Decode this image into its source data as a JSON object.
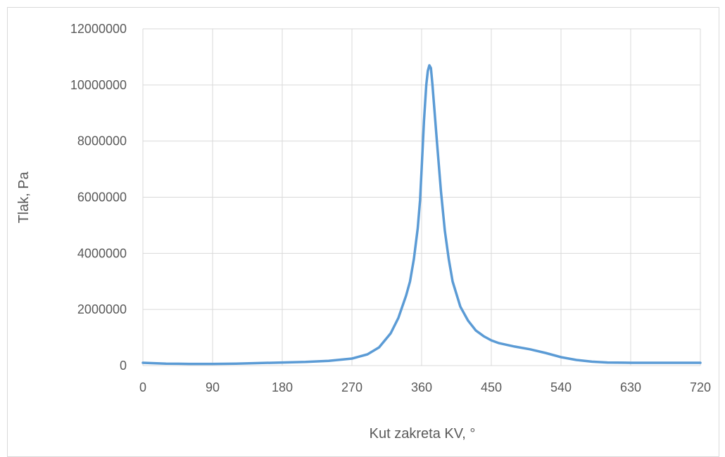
{
  "chart_data": {
    "type": "line",
    "title": "",
    "xlabel": "Kut zakreta KV, °",
    "ylabel": "Tlak, Pa",
    "xlim": [
      0,
      720
    ],
    "ylim": [
      0,
      12000000
    ],
    "x_ticks": [
      0,
      90,
      180,
      270,
      360,
      450,
      540,
      630,
      720
    ],
    "y_ticks": [
      0,
      2000000,
      4000000,
      6000000,
      8000000,
      10000000,
      12000000
    ],
    "x_tick_labels": [
      "0",
      "90",
      "180",
      "270",
      "360",
      "450",
      "540",
      "630",
      "720"
    ],
    "y_tick_labels": [
      "0",
      "2000000",
      "4000000",
      "6000000",
      "8000000",
      "10000000",
      "12000000"
    ],
    "grid": true,
    "legend": "none",
    "series_color": "#5b9bd5",
    "grid_color": "#d9d9d9",
    "series": [
      {
        "x": [
          0,
          30,
          60,
          90,
          120,
          150,
          180,
          210,
          240,
          270,
          290,
          305,
          320,
          330,
          340,
          345,
          350,
          355,
          358,
          360,
          363,
          366,
          368,
          370,
          372,
          374,
          376,
          380,
          385,
          390,
          395,
          400,
          410,
          420,
          430,
          440,
          450,
          460,
          480,
          500,
          520,
          540,
          560,
          580,
          600,
          630,
          660,
          690,
          720
        ],
        "y": [
          100000,
          70000,
          60000,
          60000,
          70000,
          90000,
          110000,
          130000,
          170000,
          250000,
          400000,
          650000,
          1150000,
          1700000,
          2500000,
          3000000,
          3800000,
          4900000,
          5900000,
          7000000,
          8700000,
          10000000,
          10500000,
          10700000,
          10600000,
          10000000,
          9300000,
          7900000,
          6200000,
          4800000,
          3800000,
          3000000,
          2100000,
          1600000,
          1250000,
          1050000,
          900000,
          800000,
          680000,
          580000,
          450000,
          300000,
          200000,
          140000,
          110000,
          100000,
          100000,
          100000,
          100000
        ]
      }
    ]
  }
}
